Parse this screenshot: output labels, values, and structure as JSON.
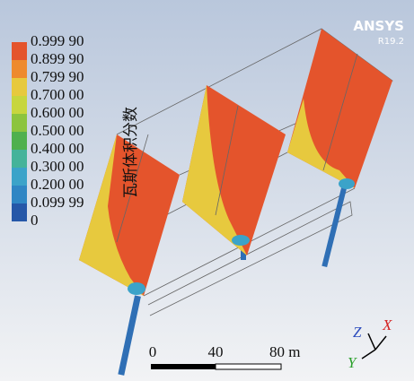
{
  "logo": {
    "brand": "ANSYS",
    "version": "R19.2"
  },
  "legend": {
    "title": "瓦斯体积分数",
    "labels": [
      "0.999 90",
      "0.899 90",
      "0.799 90",
      "0.700 00",
      "0.600 00",
      "0.500 00",
      "0.400 00",
      "0.300 00",
      "0.200 00",
      "0.099 99",
      "0"
    ]
  },
  "scale_bar": {
    "labels": [
      "0",
      "40",
      "80 m"
    ]
  },
  "triad": {
    "z": "Z",
    "x": "X",
    "y": "Y"
  }
}
